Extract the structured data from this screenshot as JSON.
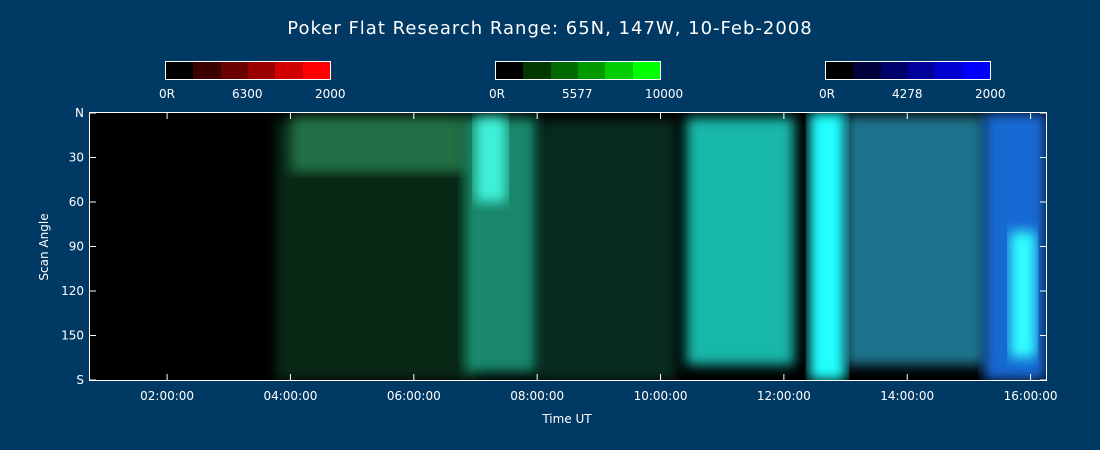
{
  "title": "Poker Flat Research Range: 65N, 147W, 10-Feb-2008",
  "colorbars": [
    {
      "label_min": "0R",
      "label_mid": "6300",
      "label_max": "2000",
      "colors": [
        "#000000",
        "#3a0000",
        "#6a0000",
        "#9a0000",
        "#d00000",
        "#ff0000"
      ]
    },
    {
      "label_min": "0R",
      "label_mid": "5577",
      "label_max": "10000",
      "colors": [
        "#000000",
        "#003800",
        "#006a00",
        "#009a00",
        "#00cc00",
        "#00ff00"
      ]
    },
    {
      "label_min": "0R",
      "label_mid": "4278",
      "label_max": "2000",
      "colors": [
        "#000000",
        "#00003a",
        "#00006a",
        "#00009a",
        "#0000d0",
        "#0000ff"
      ]
    }
  ],
  "chart_data": {
    "type": "heatmap",
    "title": "Poker Flat Research Range: 65N, 147W, 10-Feb-2008",
    "xlabel": "Time UT",
    "ylabel": "Scan Angle",
    "xlim": [
      "00:45:00",
      "16:15:00"
    ],
    "x_ticks": [
      "02:00:00",
      "04:00:00",
      "06:00:00",
      "08:00:00",
      "10:00:00",
      "12:00:00",
      "14:00:00",
      "16:00:00"
    ],
    "y_ticks": [
      "N",
      "30",
      "60",
      "90",
      "120",
      "150",
      "S"
    ],
    "ylim": [
      0,
      180
    ],
    "bands": [
      {
        "start": "03:45",
        "end": "07:00",
        "north_edge": 5,
        "south_edge": 180,
        "color": "#0f4a28",
        "intensity": 0.55
      },
      {
        "start": "04:00",
        "end": "06:50",
        "north_edge": 2,
        "south_edge": 40,
        "color": "#2f8f5a",
        "intensity": 0.7
      },
      {
        "start": "06:50",
        "end": "08:00",
        "north_edge": 3,
        "south_edge": 175,
        "color": "#24b58f",
        "intensity": 0.75
      },
      {
        "start": "07:00",
        "end": "07:30",
        "north_edge": 3,
        "south_edge": 60,
        "color": "#40f0d8",
        "intensity": 1.0
      },
      {
        "start": "08:00",
        "end": "10:15",
        "north_edge": 5,
        "south_edge": 180,
        "color": "#0f4a35",
        "intensity": 0.6
      },
      {
        "start": "10:25",
        "end": "12:10",
        "north_edge": 3,
        "south_edge": 170,
        "color": "#1fd8c8",
        "intensity": 0.85
      },
      {
        "start": "12:25",
        "end": "13:00",
        "north_edge": 0,
        "south_edge": 180,
        "color": "#20ffff",
        "intensity": 1.0
      },
      {
        "start": "13:00",
        "end": "15:15",
        "north_edge": 2,
        "south_edge": 170,
        "color": "#2aa6c8",
        "intensity": 0.7
      },
      {
        "start": "15:15",
        "end": "16:15",
        "north_edge": 0,
        "south_edge": 180,
        "color": "#1f7cf8",
        "intensity": 0.85
      },
      {
        "start": "15:40",
        "end": "16:05",
        "north_edge": 80,
        "south_edge": 165,
        "color": "#30ffff",
        "intensity": 1.0
      }
    ]
  }
}
